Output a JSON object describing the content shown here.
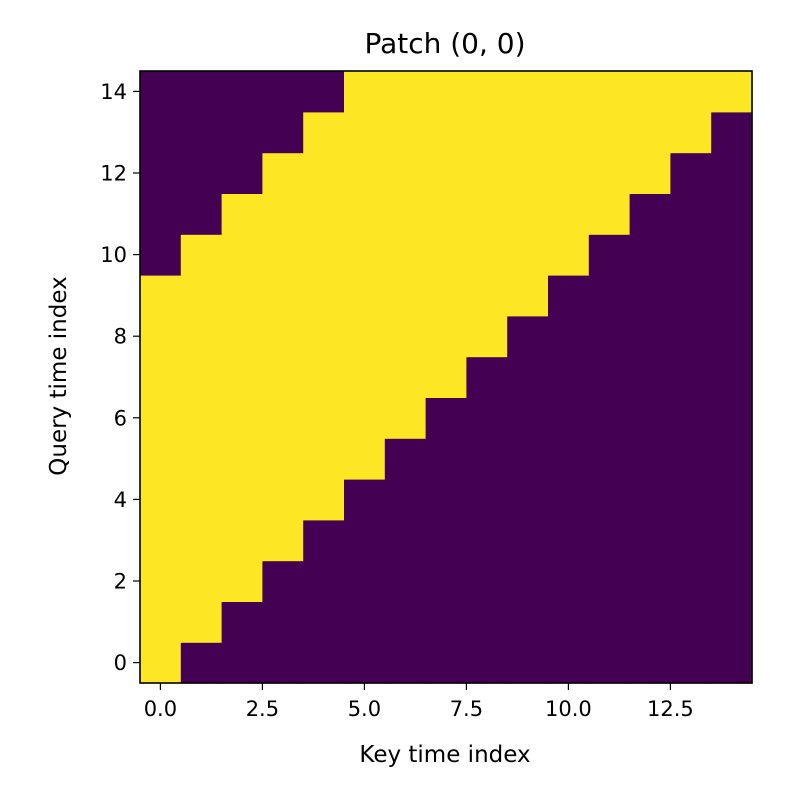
{
  "chart_data": {
    "type": "heatmap",
    "title": "Patch (0, 0)",
    "xlabel": "Key time index",
    "ylabel": "Query time index",
    "rows": 15,
    "cols": 15,
    "window_past": 9,
    "window_future": 0,
    "description_of_values": "cell (query i, key j) is 1 when 0 <= i - j <= 9, else 0",
    "xticks": [
      0.0,
      2.5,
      5.0,
      7.5,
      10.0,
      12.5
    ],
    "xtick_labels": [
      "0.0",
      "2.5",
      "5.0",
      "7.5",
      "10.0",
      "12.5"
    ],
    "yticks": [
      0,
      2,
      4,
      6,
      8,
      10,
      12,
      14
    ],
    "ytick_labels": [
      "0",
      "2",
      "4",
      "6",
      "8",
      "10",
      "12",
      "14"
    ],
    "xlim": [
      -0.5,
      14.5
    ],
    "ylim": [
      -0.5,
      14.5
    ],
    "colors": {
      "high": "#fde725",
      "low": "#440154"
    },
    "grid": false
  }
}
